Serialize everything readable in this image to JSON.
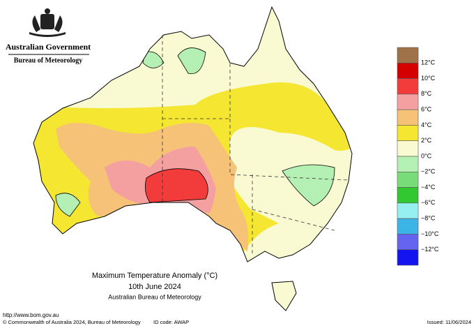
{
  "header": {
    "government": "Australian Government",
    "agency": "Bureau of Meteorology"
  },
  "title": {
    "line1": "Maximum Temperature Anomaly (°C)",
    "line2": "10th June 2024",
    "line3": "Australian Bureau of Meteorology"
  },
  "legend": {
    "colors": [
      "#a0724a",
      "#d40000",
      "#f23c3c",
      "#f5a0a0",
      "#f5c278",
      "#f5e632",
      "#fafad2",
      "#b4f0b4",
      "#78dc78",
      "#32c832",
      "#96f0f0",
      "#3cb4e6",
      "#6464f0",
      "#1414f0"
    ],
    "labels": [
      "12°C",
      "10°C",
      "8°C",
      "6°C",
      "4°C",
      "2°C",
      "0°C",
      "−2°C",
      "−4°C",
      "−6°C",
      "−8°C",
      "−10°C",
      "−12°C"
    ]
  },
  "footer": {
    "url": "http://www.bom.gov.au",
    "copyright": "© Commonwealth of Australia 2024, Bureau of Meteorology",
    "id_code": "ID code: AWAP",
    "issued": "Issued: 11/06/2024"
  }
}
